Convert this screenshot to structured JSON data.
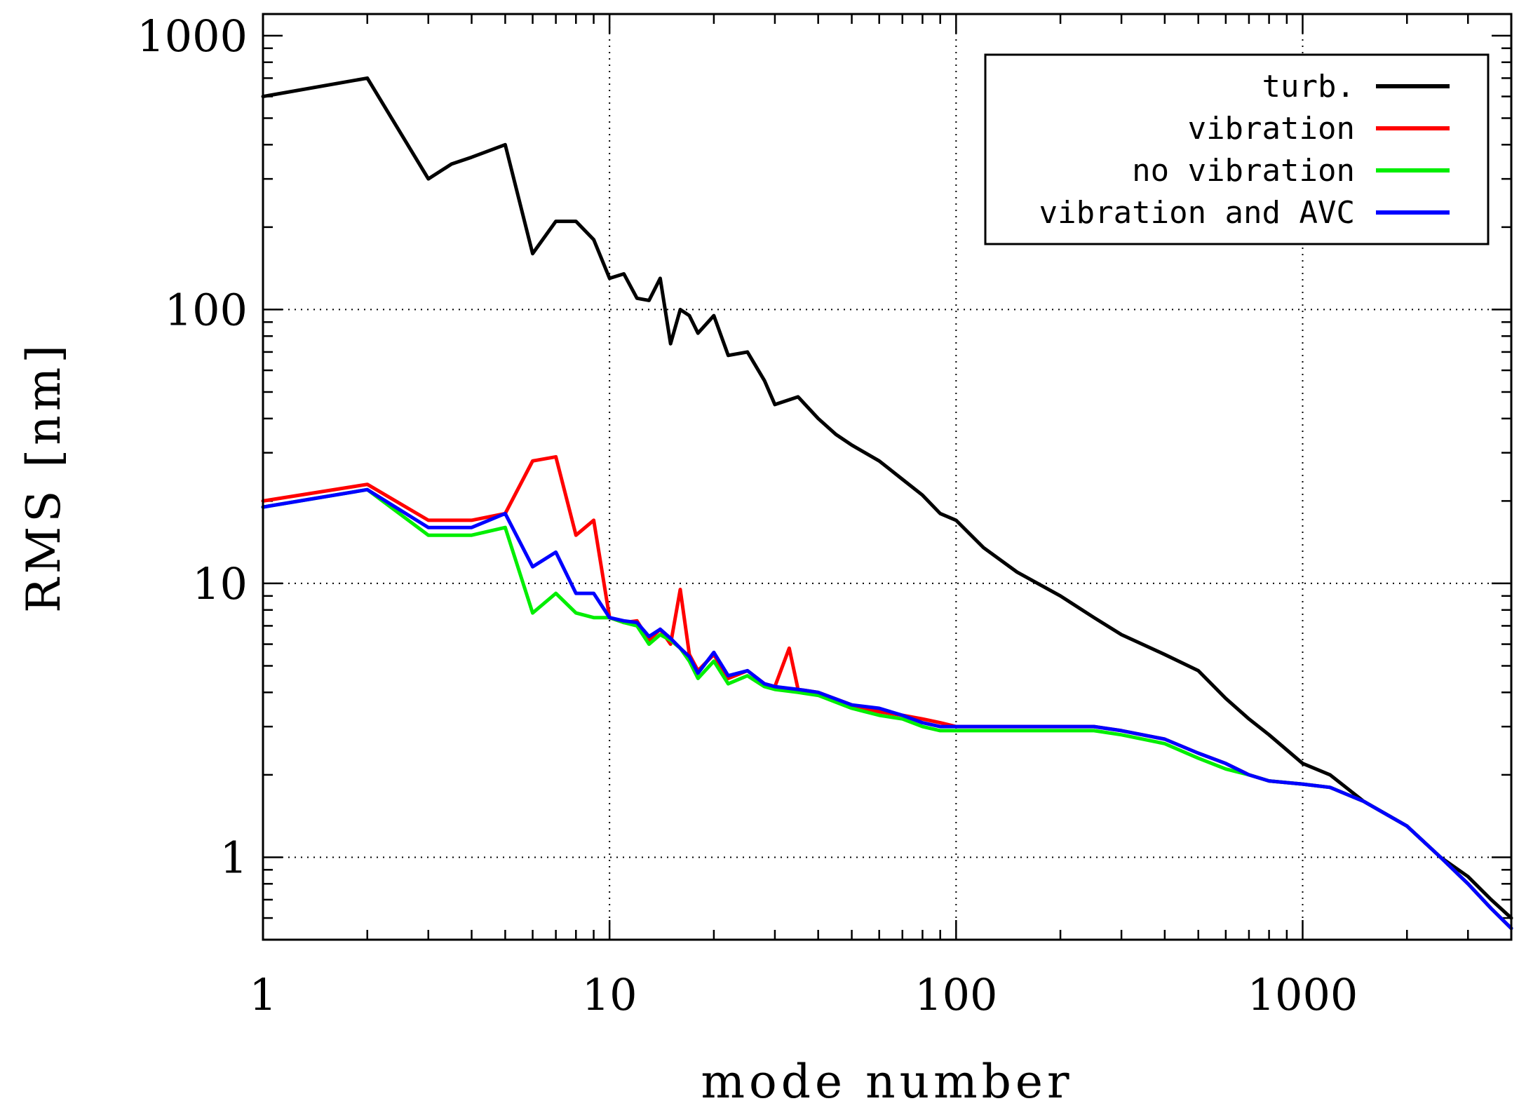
{
  "chart_data": {
    "type": "line",
    "title": "",
    "xlabel": "mode number",
    "ylabel": "RMS [nm]",
    "xscale": "log",
    "yscale": "log",
    "xlim": [
      1,
      4000
    ],
    "ylim": [
      0.5,
      1200
    ],
    "x_ticks": [
      {
        "value": 1,
        "label": "1"
      },
      {
        "value": 10,
        "label": "10"
      },
      {
        "value": 100,
        "label": "100"
      },
      {
        "value": 1000,
        "label": "1000"
      }
    ],
    "y_ticks": [
      {
        "value": 1,
        "label": "1"
      },
      {
        "value": 10,
        "label": "10"
      },
      {
        "value": 100,
        "label": "100"
      },
      {
        "value": 1000,
        "label": "1000"
      }
    ],
    "grid": true,
    "legend_position": "top-right",
    "series": [
      {
        "name": "turb.",
        "color": "#000000",
        "x": [
          1,
          2,
          3,
          3.5,
          4,
          5,
          6,
          7,
          8,
          9,
          10,
          11,
          12,
          13,
          14,
          15,
          16,
          17,
          18,
          20,
          22,
          25,
          28,
          30,
          35,
          40,
          45,
          50,
          60,
          70,
          80,
          90,
          100,
          120,
          150,
          200,
          250,
          300,
          400,
          500,
          600,
          700,
          800,
          1000,
          1200,
          1500,
          2000,
          2500,
          3000,
          3500,
          4000
        ],
        "values": [
          600,
          700,
          300,
          340,
          360,
          400,
          160,
          210,
          210,
          180,
          130,
          135,
          110,
          108,
          130,
          75,
          100,
          95,
          82,
          95,
          68,
          70,
          55,
          45,
          48,
          40,
          35,
          32,
          28,
          24,
          21,
          18,
          17,
          13.5,
          11,
          9,
          7.5,
          6.5,
          5.5,
          4.8,
          3.8,
          3.2,
          2.8,
          2.2,
          2.0,
          1.6,
          1.3,
          1.0,
          0.85,
          0.7,
          0.6
        ]
      },
      {
        "name": "vibration",
        "color": "#ff0000",
        "x": [
          1,
          2,
          3,
          4,
          5,
          6,
          7,
          8,
          9,
          10,
          11,
          12,
          13,
          14,
          15,
          16,
          17,
          18,
          20,
          22,
          25,
          28,
          30,
          33,
          35,
          40,
          50,
          60,
          70,
          80,
          90,
          100,
          120,
          150,
          200,
          250,
          300,
          400,
          500,
          600,
          700,
          800,
          1000,
          1200,
          1500,
          2000,
          2500,
          3000,
          3500,
          4000
        ],
        "values": [
          20,
          23,
          17,
          17,
          18,
          28,
          29,
          15,
          17,
          7.5,
          7.2,
          7.3,
          6.2,
          6.8,
          6.0,
          9.5,
          5.5,
          4.8,
          5.5,
          4.5,
          4.8,
          4.3,
          4.2,
          5.8,
          4.1,
          4.0,
          3.6,
          3.4,
          3.3,
          3.2,
          3.1,
          3.0,
          3.0,
          3.0,
          3.0,
          3.0,
          2.9,
          2.7,
          2.4,
          2.2,
          2.0,
          1.9,
          1.85,
          1.8,
          1.6,
          1.3,
          1.0,
          0.8,
          0.65,
          0.55
        ]
      },
      {
        "name": "no vibration",
        "color": "#00ee00",
        "x": [
          1,
          2,
          3,
          4,
          5,
          6,
          7,
          8,
          9,
          10,
          11,
          12,
          13,
          14,
          15,
          16,
          17,
          18,
          20,
          22,
          25,
          28,
          30,
          35,
          40,
          50,
          60,
          70,
          80,
          90,
          100,
          120,
          150,
          200,
          250,
          300,
          400,
          500,
          600,
          700,
          800,
          1000,
          1200,
          1500,
          2000,
          2500,
          3000,
          3500,
          4000
        ],
        "values": [
          19,
          22,
          15,
          15,
          16,
          7.8,
          9.2,
          7.8,
          7.5,
          7.5,
          7.2,
          7.0,
          6.0,
          6.5,
          6.2,
          5.8,
          5.2,
          4.5,
          5.2,
          4.3,
          4.6,
          4.2,
          4.1,
          4.0,
          3.9,
          3.5,
          3.3,
          3.2,
          3.0,
          2.9,
          2.9,
          2.9,
          2.9,
          2.9,
          2.9,
          2.8,
          2.6,
          2.3,
          2.1,
          2.0,
          1.9,
          1.85,
          1.8,
          1.6,
          1.3,
          1.0,
          0.8,
          0.65,
          0.55
        ]
      },
      {
        "name": "vibration and AVC",
        "color": "#0000ff",
        "x": [
          1,
          2,
          3,
          4,
          5,
          6,
          7,
          8,
          9,
          10,
          11,
          12,
          13,
          14,
          15,
          16,
          17,
          18,
          20,
          22,
          25,
          28,
          30,
          35,
          40,
          50,
          60,
          70,
          80,
          90,
          100,
          120,
          150,
          200,
          250,
          300,
          400,
          500,
          600,
          700,
          800,
          1000,
          1200,
          1500,
          2000,
          2500,
          3000,
          3500,
          4000
        ],
        "values": [
          19,
          22,
          16,
          16,
          18,
          11.5,
          13,
          9.2,
          9.2,
          7.5,
          7.3,
          7.2,
          6.4,
          6.8,
          6.3,
          5.8,
          5.4,
          4.7,
          5.6,
          4.6,
          4.8,
          4.3,
          4.2,
          4.1,
          4.0,
          3.6,
          3.5,
          3.3,
          3.1,
          3.0,
          3.0,
          3.0,
          3.0,
          3.0,
          3.0,
          2.9,
          2.7,
          2.4,
          2.2,
          2.0,
          1.9,
          1.85,
          1.8,
          1.6,
          1.3,
          1.0,
          0.8,
          0.65,
          0.55
        ]
      }
    ]
  }
}
